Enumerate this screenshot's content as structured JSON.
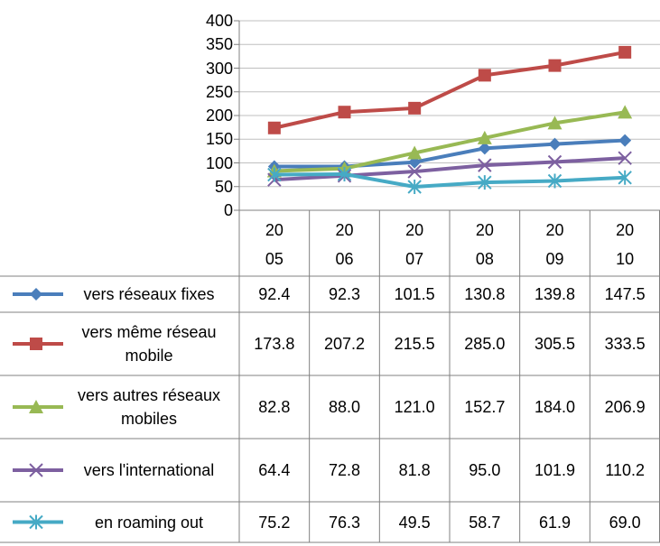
{
  "chart_data": {
    "type": "line",
    "categories": [
      "2005",
      "2006",
      "2007",
      "2008",
      "2009",
      "2010"
    ],
    "ylim": [
      0,
      400
    ],
    "yticks": [
      0,
      50,
      100,
      150,
      200,
      250,
      300,
      350,
      400
    ],
    "grid": true,
    "series": [
      {
        "name": "vers réseaux fixes",
        "color": "#4a7ebb",
        "marker": "diamond",
        "values": [
          92.4,
          92.3,
          101.5,
          130.8,
          139.8,
          147.5
        ],
        "value_labels": [
          "92.4",
          "92.3",
          "101.5",
          "130.8",
          "139.8",
          "147.5"
        ]
      },
      {
        "name": "vers même réseau mobile",
        "color": "#be4b48",
        "marker": "square",
        "values": [
          173.8,
          207.2,
          215.5,
          285.0,
          305.5,
          333.5
        ],
        "value_labels": [
          "173.8",
          "207.2",
          "215.5",
          "285.0",
          "305.5",
          "333.5"
        ]
      },
      {
        "name": "vers autres réseaux mobiles",
        "color": "#98b954",
        "marker": "triangle",
        "values": [
          82.8,
          88.0,
          121.0,
          152.7,
          184.0,
          206.9
        ],
        "value_labels": [
          "82.8",
          "88.0",
          "121.0",
          "152.7",
          "184.0",
          "206.9"
        ]
      },
      {
        "name": "vers l'international",
        "color": "#7d60a0",
        "marker": "x",
        "values": [
          64.4,
          72.8,
          81.8,
          95.0,
          101.9,
          110.2
        ],
        "value_labels": [
          "64.4",
          "72.8",
          "81.8",
          "95.0",
          "101.9",
          "110.2"
        ]
      },
      {
        "name": "en roaming out",
        "color": "#46aac5",
        "marker": "star",
        "values": [
          75.2,
          76.3,
          49.5,
          58.7,
          61.9,
          69.0
        ],
        "value_labels": [
          "75.2",
          "76.3",
          "49.5",
          "58.7",
          "61.9",
          "69.0"
        ]
      }
    ]
  }
}
